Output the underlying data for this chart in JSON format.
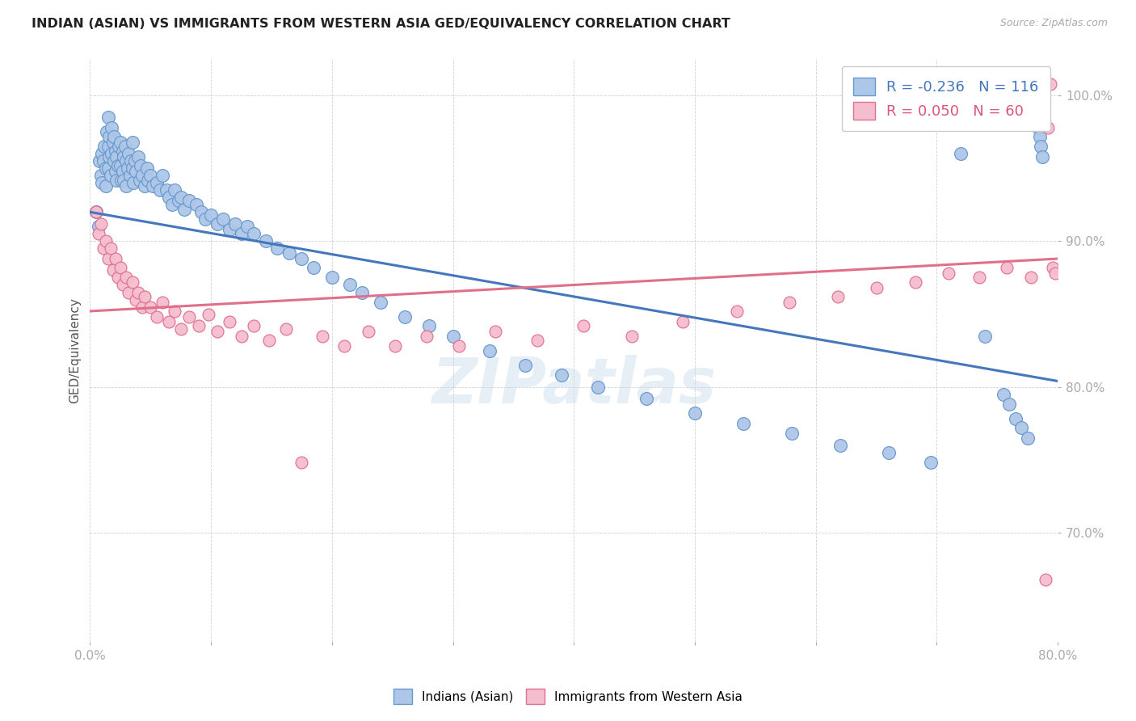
{
  "title": "INDIAN (ASIAN) VS IMMIGRANTS FROM WESTERN ASIA GED/EQUIVALENCY CORRELATION CHART",
  "source": "Source: ZipAtlas.com",
  "ylabel": "GED/Equivalency",
  "blue_label": "Indians (Asian)",
  "pink_label": "Immigrants from Western Asia",
  "blue_R": -0.236,
  "blue_N": 116,
  "pink_R": 0.05,
  "pink_N": 60,
  "xlim": [
    0.0,
    0.8
  ],
  "ylim": [
    0.625,
    1.025
  ],
  "x_ticks": [
    0.0,
    0.1,
    0.2,
    0.3,
    0.4,
    0.5,
    0.6,
    0.7,
    0.8
  ],
  "x_tick_labels": [
    "0.0%",
    "",
    "",
    "",
    "",
    "",
    "",
    "",
    "80.0%"
  ],
  "y_ticks": [
    0.7,
    0.8,
    0.9,
    1.0
  ],
  "y_tick_labels": [
    "70.0%",
    "80.0%",
    "90.0%",
    "100.0%"
  ],
  "blue_color": "#aec6e8",
  "blue_edge": "#6699cc",
  "pink_color": "#f5bece",
  "pink_edge": "#e07090",
  "blue_line_color": "#4477bb",
  "pink_line_color": "#e0708a",
  "watermark": "ZIPatlas",
  "blue_trend_x": [
    0.0,
    0.8
  ],
  "blue_trend_y": [
    0.92,
    0.804
  ],
  "pink_trend_x": [
    0.0,
    0.8
  ],
  "pink_trend_y": [
    0.852,
    0.888
  ],
  "blue_x": [
    0.005,
    0.007,
    0.008,
    0.009,
    0.01,
    0.01,
    0.011,
    0.012,
    0.013,
    0.013,
    0.014,
    0.015,
    0.015,
    0.015,
    0.016,
    0.016,
    0.017,
    0.018,
    0.018,
    0.019,
    0.02,
    0.02,
    0.021,
    0.021,
    0.022,
    0.022,
    0.023,
    0.024,
    0.025,
    0.025,
    0.026,
    0.027,
    0.027,
    0.028,
    0.028,
    0.029,
    0.03,
    0.03,
    0.031,
    0.032,
    0.033,
    0.034,
    0.035,
    0.035,
    0.036,
    0.037,
    0.038,
    0.04,
    0.041,
    0.042,
    0.043,
    0.045,
    0.047,
    0.048,
    0.05,
    0.052,
    0.055,
    0.058,
    0.06,
    0.063,
    0.065,
    0.068,
    0.07,
    0.073,
    0.075,
    0.078,
    0.082,
    0.088,
    0.092,
    0.095,
    0.1,
    0.105,
    0.11,
    0.115,
    0.12,
    0.125,
    0.13,
    0.135,
    0.145,
    0.155,
    0.165,
    0.175,
    0.185,
    0.2,
    0.215,
    0.225,
    0.24,
    0.26,
    0.28,
    0.3,
    0.33,
    0.36,
    0.39,
    0.42,
    0.46,
    0.5,
    0.54,
    0.58,
    0.62,
    0.66,
    0.695,
    0.72,
    0.74,
    0.755,
    0.76,
    0.765,
    0.77,
    0.775,
    0.778,
    0.78,
    0.782,
    0.783,
    0.784,
    0.785,
    0.786,
    0.787
  ],
  "blue_y": [
    0.92,
    0.91,
    0.955,
    0.945,
    0.96,
    0.94,
    0.955,
    0.965,
    0.95,
    0.938,
    0.975,
    0.985,
    0.965,
    0.95,
    0.972,
    0.958,
    0.945,
    0.978,
    0.96,
    0.968,
    0.972,
    0.955,
    0.962,
    0.948,
    0.958,
    0.942,
    0.952,
    0.965,
    0.968,
    0.952,
    0.942,
    0.962,
    0.948,
    0.958,
    0.942,
    0.965,
    0.955,
    0.938,
    0.95,
    0.96,
    0.945,
    0.955,
    0.968,
    0.95,
    0.94,
    0.955,
    0.948,
    0.958,
    0.942,
    0.952,
    0.945,
    0.938,
    0.95,
    0.942,
    0.945,
    0.938,
    0.94,
    0.935,
    0.945,
    0.935,
    0.93,
    0.925,
    0.935,
    0.928,
    0.93,
    0.922,
    0.928,
    0.925,
    0.92,
    0.915,
    0.918,
    0.912,
    0.915,
    0.908,
    0.912,
    0.905,
    0.91,
    0.905,
    0.9,
    0.895,
    0.892,
    0.888,
    0.882,
    0.875,
    0.87,
    0.865,
    0.858,
    0.848,
    0.842,
    0.835,
    0.825,
    0.815,
    0.808,
    0.8,
    0.792,
    0.782,
    0.775,
    0.768,
    0.76,
    0.755,
    0.748,
    0.96,
    0.835,
    0.795,
    0.788,
    0.778,
    0.772,
    0.765,
    1.002,
    0.998,
    0.992,
    0.985,
    0.978,
    0.972,
    0.965,
    0.958
  ],
  "pink_x": [
    0.005,
    0.007,
    0.009,
    0.011,
    0.013,
    0.015,
    0.017,
    0.019,
    0.021,
    0.023,
    0.025,
    0.027,
    0.03,
    0.032,
    0.035,
    0.038,
    0.04,
    0.043,
    0.045,
    0.05,
    0.055,
    0.06,
    0.065,
    0.07,
    0.075,
    0.082,
    0.09,
    0.098,
    0.105,
    0.115,
    0.125,
    0.135,
    0.148,
    0.162,
    0.175,
    0.192,
    0.21,
    0.23,
    0.252,
    0.278,
    0.305,
    0.335,
    0.37,
    0.408,
    0.448,
    0.49,
    0.535,
    0.578,
    0.618,
    0.65,
    0.682,
    0.71,
    0.735,
    0.758,
    0.778,
    0.79,
    0.792,
    0.794,
    0.796,
    0.798
  ],
  "pink_y": [
    0.92,
    0.905,
    0.912,
    0.895,
    0.9,
    0.888,
    0.895,
    0.88,
    0.888,
    0.875,
    0.882,
    0.87,
    0.875,
    0.865,
    0.872,
    0.86,
    0.865,
    0.855,
    0.862,
    0.855,
    0.848,
    0.858,
    0.845,
    0.852,
    0.84,
    0.848,
    0.842,
    0.85,
    0.838,
    0.845,
    0.835,
    0.842,
    0.832,
    0.84,
    0.748,
    0.835,
    0.828,
    0.838,
    0.828,
    0.835,
    0.828,
    0.838,
    0.832,
    0.842,
    0.835,
    0.845,
    0.852,
    0.858,
    0.862,
    0.868,
    0.872,
    0.878,
    0.875,
    0.882,
    0.875,
    0.668,
    0.978,
    1.008,
    0.882,
    0.878
  ]
}
